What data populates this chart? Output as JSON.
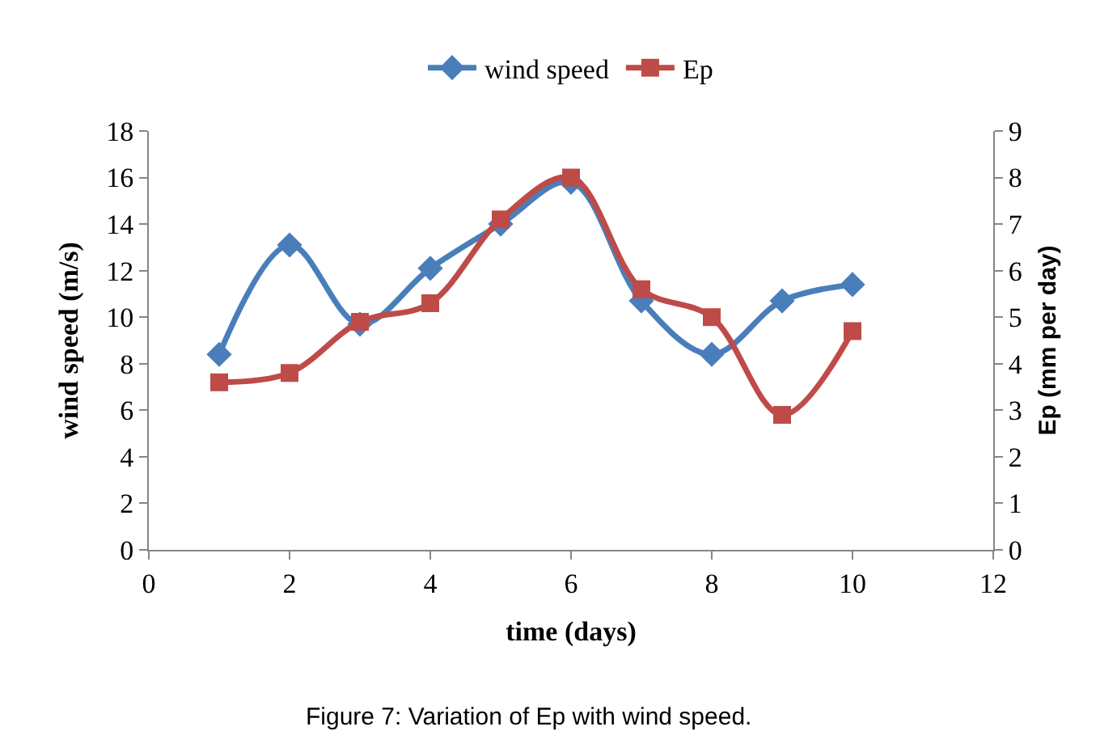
{
  "chart_data": {
    "type": "line",
    "xlabel": "time (days)",
    "ylabel": "wind speed (m/s)",
    "y2label": "Ep (mm per day)",
    "x": [
      1,
      2,
      3,
      4,
      5,
      6,
      7,
      8,
      9,
      10
    ],
    "series": [
      {
        "name": "wind speed",
        "color": "#4a7ebb",
        "marker": "diamond",
        "values": [
          8.4,
          13.1,
          9.7,
          12.1,
          14.0,
          15.8,
          10.7,
          8.4,
          10.7,
          11.4
        ]
      },
      {
        "name": "Ep",
        "color": "#be4b48",
        "marker": "square",
        "axis": "y2",
        "values": [
          3.6,
          3.8,
          4.9,
          5.3,
          7.1,
          8.0,
          5.6,
          5.0,
          2.9,
          4.7
        ]
      }
    ],
    "xlim": [
      0,
      12
    ],
    "xticks": [
      0,
      2,
      4,
      6,
      8,
      10,
      12
    ],
    "ylim": [
      0,
      18
    ],
    "yticks": [
      0,
      2,
      4,
      6,
      8,
      10,
      12,
      14,
      16,
      18
    ],
    "y2lim": [
      0,
      9
    ],
    "y2ticks": [
      0,
      1,
      2,
      3,
      4,
      5,
      6,
      7,
      8,
      9
    ],
    "grid": false,
    "legend": "top",
    "line_style": "solid",
    "annotations": [
      "Figure 7: Variation of Ep with wind speed."
    ]
  }
}
